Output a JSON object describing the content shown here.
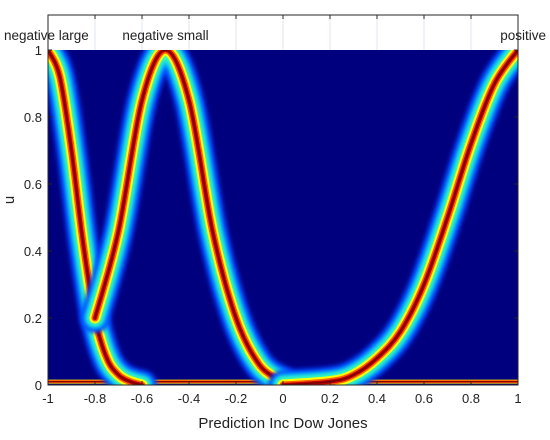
{
  "chart_data": {
    "type": "heatmap",
    "title": "",
    "xlabel": "Prediction Inc Dow Jones",
    "ylabel": "u",
    "xlim": [
      -1,
      1
    ],
    "ylim": [
      0,
      1
    ],
    "grid": true,
    "colormap": "jet",
    "x_ticks": [
      -1,
      -0.8,
      -0.6,
      -0.4,
      -0.2,
      0,
      0.2,
      0.4,
      0.6,
      0.8,
      1
    ],
    "x_tick_labels": [
      "-1",
      "-0.8",
      "-0.6",
      "-0.4",
      "-0.2",
      "0",
      "0.2",
      "0.4",
      "0.6",
      "0.8",
      "1"
    ],
    "y_ticks": [
      0,
      0.2,
      0.4,
      0.6,
      0.8,
      1
    ],
    "y_tick_labels": [
      "0",
      "0.2",
      "0.4",
      "0.6",
      "0.8",
      "1"
    ],
    "series": [
      {
        "name": "negative large",
        "label_x": -1,
        "shape": "z-shaped",
        "x": [
          -1,
          -0.95,
          -0.9,
          -0.85,
          -0.8,
          -0.75,
          -0.7,
          -0.65,
          -0.6
        ],
        "u": [
          1,
          0.92,
          0.7,
          0.42,
          0.2,
          0.08,
          0.03,
          0.01,
          0
        ]
      },
      {
        "name": "negative small",
        "label_x": -0.5,
        "shape": "bell",
        "x": [
          -0.8,
          -0.7,
          -0.6,
          -0.5,
          -0.4,
          -0.3,
          -0.2,
          -0.1,
          0
        ],
        "u": [
          0.2,
          0.46,
          0.85,
          1,
          0.85,
          0.46,
          0.2,
          0.06,
          0.01
        ]
      },
      {
        "name": "positive",
        "label_x": 1,
        "shape": "s-shaped",
        "x": [
          0,
          0.2,
          0.3,
          0.4,
          0.5,
          0.6,
          0.7,
          0.8,
          0.9,
          1
        ],
        "u": [
          0,
          0.01,
          0.03,
          0.08,
          0.16,
          0.3,
          0.5,
          0.72,
          0.9,
          1
        ]
      }
    ],
    "colors": {
      "background": "#00007f",
      "frame": "#262626",
      "grid": "#dfe6f0"
    }
  }
}
